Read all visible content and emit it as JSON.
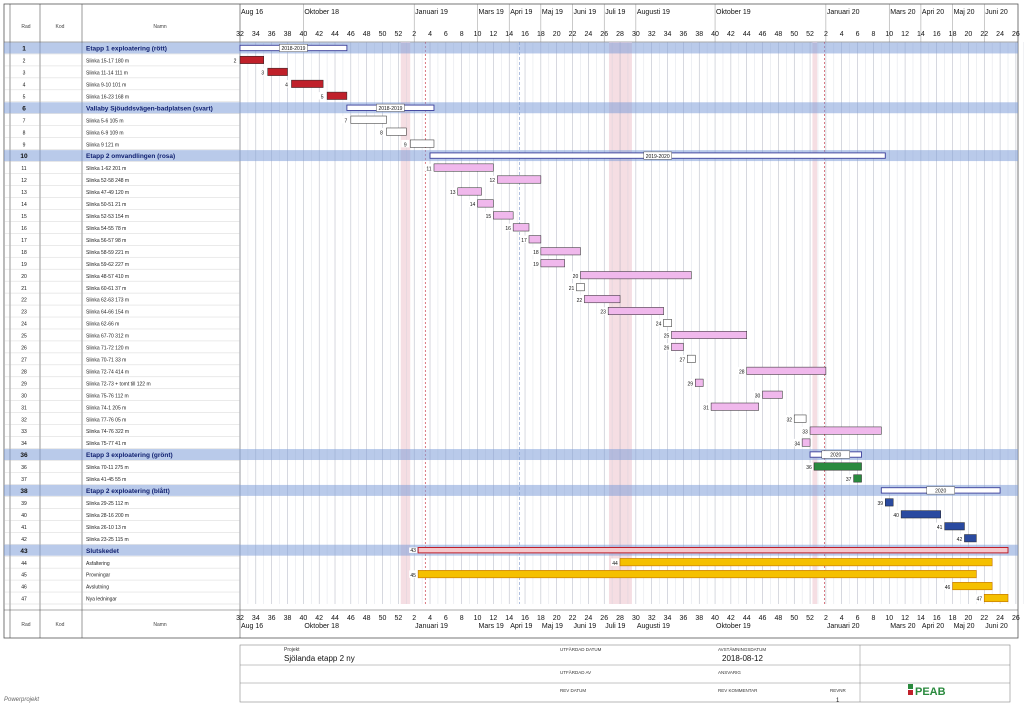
{
  "header": {
    "col_rad": "Rad",
    "col_kod": "Kod",
    "col_namn": "Namn",
    "months": [
      {
        "label": "Aug 16",
        "week": 32
      },
      {
        "label": "Oktober 18",
        "week": 40
      },
      {
        "label": "Januari 19",
        "week": 54
      },
      {
        "label": "Mars 19",
        "week": 62
      },
      {
        "label": "Apri 19",
        "week": 66
      },
      {
        "label": "Maj 19",
        "week": 70
      },
      {
        "label": "Juni 19",
        "week": 74
      },
      {
        "label": "Juli 19",
        "week": 78
      },
      {
        "label": "Augusti 19",
        "week": 82
      },
      {
        "label": "Oktober 19",
        "week": 92
      },
      {
        "label": "Januari 20",
        "week": 106
      },
      {
        "label": "Mars 20",
        "week": 114
      },
      {
        "label": "Apri 20",
        "week": 118
      },
      {
        "label": "Maj 20",
        "week": 122
      },
      {
        "label": "Juni 20",
        "week": 126
      }
    ]
  },
  "footer": {
    "projekt_label": "Projekt",
    "projekt_value": "Sjölanda etapp 2 ny",
    "utfardad_datum_label": "UTFÄRDAD DATUM",
    "avstamningsdatum_label": "AVSTÄMNINGSDATUM",
    "avstamningsdatum_value": "2018-08-12",
    "utfardad_av_label": "UTFÄRDAD AV",
    "ansvarig_label": "ANSVARIG",
    "rev_datum_label": "REV DATUM",
    "rev_kommentar_label": "REV KOMMENTAR",
    "revnr_label": "REVNR",
    "revnr_value": "1",
    "software": "Powerprojekt",
    "logo_text": "PEAB"
  },
  "colors": {
    "summary_band": "#7f9ed8",
    "red": "#c0202a",
    "pink": "#f0b8ec",
    "green": "#2a8a3e",
    "blue": "#2a4aa0",
    "orange": "#f5c000",
    "white_bar": "#ffffff",
    "summary_bar": "#3c3f9a"
  },
  "chart_data": {
    "type": "gantt",
    "x_unit": "week",
    "xlim": [
      32,
      129
    ],
    "week_ticks": [
      32,
      34,
      36,
      38,
      40,
      42,
      44,
      46,
      48,
      50,
      52,
      2,
      4,
      6,
      8,
      10,
      12,
      14,
      16,
      18,
      20,
      22,
      24,
      26,
      28,
      30,
      32,
      34,
      36,
      38,
      40,
      42,
      44,
      46,
      48,
      50,
      52,
      2,
      4,
      6,
      8,
      10,
      12,
      14,
      16,
      18,
      20,
      22,
      24,
      26
    ],
    "tasks": [
      {
        "row": 1,
        "name": "Etapp 1 exploatering (rött)",
        "summary": true,
        "start": 32,
        "end": 45.5,
        "color": "summary_bar",
        "label": "2018-2019"
      },
      {
        "row": 2,
        "name": "Slinka 15-17 180 m",
        "start": 32,
        "end": 35,
        "color": "red",
        "num": "2"
      },
      {
        "row": 3,
        "name": "Slinka 11-14 111 m",
        "start": 35.5,
        "end": 38,
        "color": "red",
        "num": "3"
      },
      {
        "row": 4,
        "name": "Slinka 9-10 101 m",
        "start": 38.5,
        "end": 42.5,
        "color": "red",
        "num": "4"
      },
      {
        "row": 5,
        "name": "Slinka 16-23 168 m",
        "start": 43,
        "end": 45.5,
        "color": "red",
        "num": "5"
      },
      {
        "row": 6,
        "name": "Vallaby Sjöuddsvägen-badplatsen (svart)",
        "summary": true,
        "start": 45.5,
        "end": 56.5,
        "color": "summary_bar",
        "label": "2018-2019"
      },
      {
        "row": 7,
        "name": "Slinka 5-6 105 m",
        "start": 46,
        "end": 50.5,
        "color": "white_bar",
        "num": "7"
      },
      {
        "row": 8,
        "name": "Slinka 6-9 109 m",
        "start": 50.5,
        "end": 53,
        "color": "white_bar",
        "num": "8"
      },
      {
        "row": 9,
        "name": "Slinka 9 121 m",
        "start": 53.5,
        "end": 56.5,
        "color": "white_bar",
        "num": "9"
      },
      {
        "row": 10,
        "name": "Etapp 2 omvandlingen (rosa)",
        "summary": true,
        "start": 56,
        "end": 113.5,
        "color": "summary_bar",
        "label": "2019-2020"
      },
      {
        "row": 11,
        "name": "Slinka 1-62 201 m",
        "start": 56.5,
        "end": 64,
        "color": "pink",
        "num": "11"
      },
      {
        "row": 12,
        "name": "Slinka 52-58 248 m",
        "start": 64.5,
        "end": 70,
        "color": "pink",
        "num": "12"
      },
      {
        "row": 13,
        "name": "Slinka 47-49 120 m",
        "start": 59.5,
        "end": 62.5,
        "color": "pink",
        "num": "13"
      },
      {
        "row": 14,
        "name": "Slinka 50-51 21 m",
        "start": 62,
        "end": 64,
        "color": "pink",
        "num": "14"
      },
      {
        "row": 15,
        "name": "Slinka 52-53 154 m",
        "start": 64,
        "end": 66.5,
        "color": "pink",
        "num": "15"
      },
      {
        "row": 16,
        "name": "Slinka 54-55 78 m",
        "start": 66.5,
        "end": 68.5,
        "color": "pink",
        "num": "16"
      },
      {
        "row": 17,
        "name": "Slinka 56-57 98 m",
        "start": 68.5,
        "end": 70,
        "color": "pink",
        "num": "17"
      },
      {
        "row": 18,
        "name": "Slinka 58-59 221 m",
        "start": 70,
        "end": 75,
        "color": "pink",
        "num": "18"
      },
      {
        "row": 19,
        "name": "Slinka 59-62 227 m",
        "start": 70,
        "end": 73,
        "color": "pink",
        "num": "19"
      },
      {
        "row": 20,
        "name": "Slinka 48-57 410 m",
        "start": 75,
        "end": 89,
        "color": "pink",
        "num": "20"
      },
      {
        "row": 21,
        "name": "Slinka 60-61 37 m",
        "start": 74.5,
        "end": 75.5,
        "color": "white_bar",
        "num": "21"
      },
      {
        "row": 22,
        "name": "Slinka 62-63 173 m",
        "start": 75.5,
        "end": 80,
        "color": "pink",
        "num": "22"
      },
      {
        "row": 23,
        "name": "Slinka 64-66 154 m",
        "start": 78.5,
        "end": 85.5,
        "color": "pink",
        "num": "23"
      },
      {
        "row": 24,
        "name": "Slinka 62-66 m",
        "start": 85.5,
        "end": 86.5,
        "color": "white_bar",
        "num": "24"
      },
      {
        "row": 25,
        "name": "Slinka 67-70 312 m",
        "start": 86.5,
        "end": 96,
        "color": "pink",
        "num": "25"
      },
      {
        "row": 26,
        "name": "Slinka 71-72 120 m",
        "start": 86.5,
        "end": 88,
        "color": "pink",
        "num": "26"
      },
      {
        "row": 27,
        "name": "Slinka 70-71 33 m",
        "start": 88.5,
        "end": 89.5,
        "color": "white_bar",
        "num": "27"
      },
      {
        "row": 28,
        "name": "Slinka 72-74 414 m",
        "start": 96,
        "end": 106,
        "color": "pink",
        "num": "28"
      },
      {
        "row": 29,
        "name": "Slinka 72-73 + tomt till 122 m",
        "start": 89.5,
        "end": 90.5,
        "color": "pink",
        "num": "29"
      },
      {
        "row": 30,
        "name": "Slinka 75-76 112 m",
        "start": 98,
        "end": 100.5,
        "color": "pink",
        "num": "30"
      },
      {
        "row": 31,
        "name": "Slinka 74-1 205 m",
        "start": 91.5,
        "end": 97.5,
        "color": "pink",
        "num": "31"
      },
      {
        "row": 32,
        "name": "Slinka 77-76 05 m",
        "start": 102,
        "end": 103.5,
        "color": "white_bar",
        "num": "32"
      },
      {
        "row": 33,
        "name": "Slinka 74-76 322 m",
        "start": 104,
        "end": 113,
        "color": "pink",
        "num": "33"
      },
      {
        "row": 34,
        "name": "Slinka 75-77 41 m",
        "start": 103,
        "end": 104,
        "color": "pink",
        "num": "34"
      },
      {
        "row": 36,
        "name": "Etapp 3 exploatering (grönt)",
        "summary": true,
        "start": 104,
        "end": 110.5,
        "color": "summary_bar",
        "label": "2020"
      },
      {
        "row": 36,
        "name": "Slinka 70-11 275 m",
        "start": 104.5,
        "end": 110.5,
        "color": "green",
        "num": "36"
      },
      {
        "row": 37,
        "name": "Slinka 41-45 55 m",
        "start": 109.5,
        "end": 110.5,
        "color": "green",
        "num": "37"
      },
      {
        "row": 38,
        "name": "Etapp 2 exploatering (blått)",
        "summary": true,
        "start": 113,
        "end": 128,
        "color": "summary_bar",
        "label": "2020"
      },
      {
        "row": 39,
        "name": "Slinka 29-25 112 m",
        "start": 113.5,
        "end": 114.5,
        "color": "blue",
        "num": "39"
      },
      {
        "row": 40,
        "name": "Slinka 28-16 200 m",
        "start": 115.5,
        "end": 120.5,
        "color": "blue",
        "num": "40"
      },
      {
        "row": 41,
        "name": "Slinka 26-10 13 m",
        "start": 121,
        "end": 123.5,
        "color": "blue",
        "num": "41"
      },
      {
        "row": 42,
        "name": "Slinka 23-25 115 m",
        "start": 123.5,
        "end": 125,
        "color": "blue",
        "num": "42"
      },
      {
        "row": 43,
        "name": "Slutskedet",
        "summary": true,
        "start": 54.5,
        "end": 129,
        "color": "red",
        "num": "43"
      },
      {
        "row": 44,
        "name": "Asfaltering",
        "start": 80,
        "end": 127,
        "color": "orange",
        "num": "44"
      },
      {
        "row": 45,
        "name": "Provningar",
        "start": 54.5,
        "end": 125,
        "color": "orange",
        "num": "45"
      },
      {
        "row": 46,
        "name": "Avslutning",
        "start": 122,
        "end": 127,
        "color": "orange",
        "num": "46"
      },
      {
        "row": 47,
        "name": "Nya ledningar",
        "start": 126,
        "end": 129,
        "color": "orange",
        "num": "47"
      }
    ],
    "rows": [
      1,
      2,
      3,
      4,
      5,
      6,
      7,
      8,
      9,
      10,
      11,
      12,
      13,
      14,
      15,
      16,
      17,
      18,
      19,
      20,
      21,
      22,
      23,
      24,
      25,
      26,
      27,
      28,
      29,
      30,
      31,
      32,
      33,
      34,
      36,
      36,
      37,
      38,
      39,
      40,
      41,
      42,
      43,
      44,
      45,
      46,
      47
    ]
  }
}
